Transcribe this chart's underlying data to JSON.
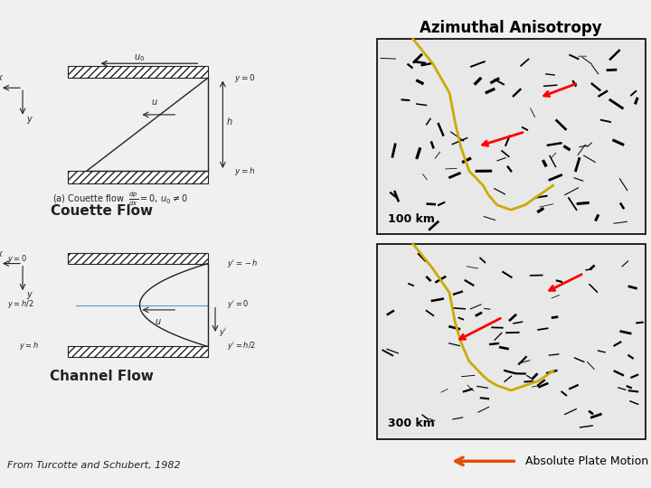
{
  "bg_color": "#f0f0f0",
  "title_right": "Azimuthal Anisotropy",
  "label_couette": "Couette Flow",
  "label_channel": "Channel Flow",
  "label_from": "From Turcotte and Schubert, 1982",
  "label_apm": "Absolute Plate Motion",
  "label_100km": "100 km",
  "label_300km": "300 km",
  "arrow_color": "#e05000",
  "line_color": "#222222",
  "hatch_color": "#555555",
  "blue_line_color": "#5599cc",
  "gold_color": "#ccaa00",
  "fig_bg": "#f0f0f0"
}
